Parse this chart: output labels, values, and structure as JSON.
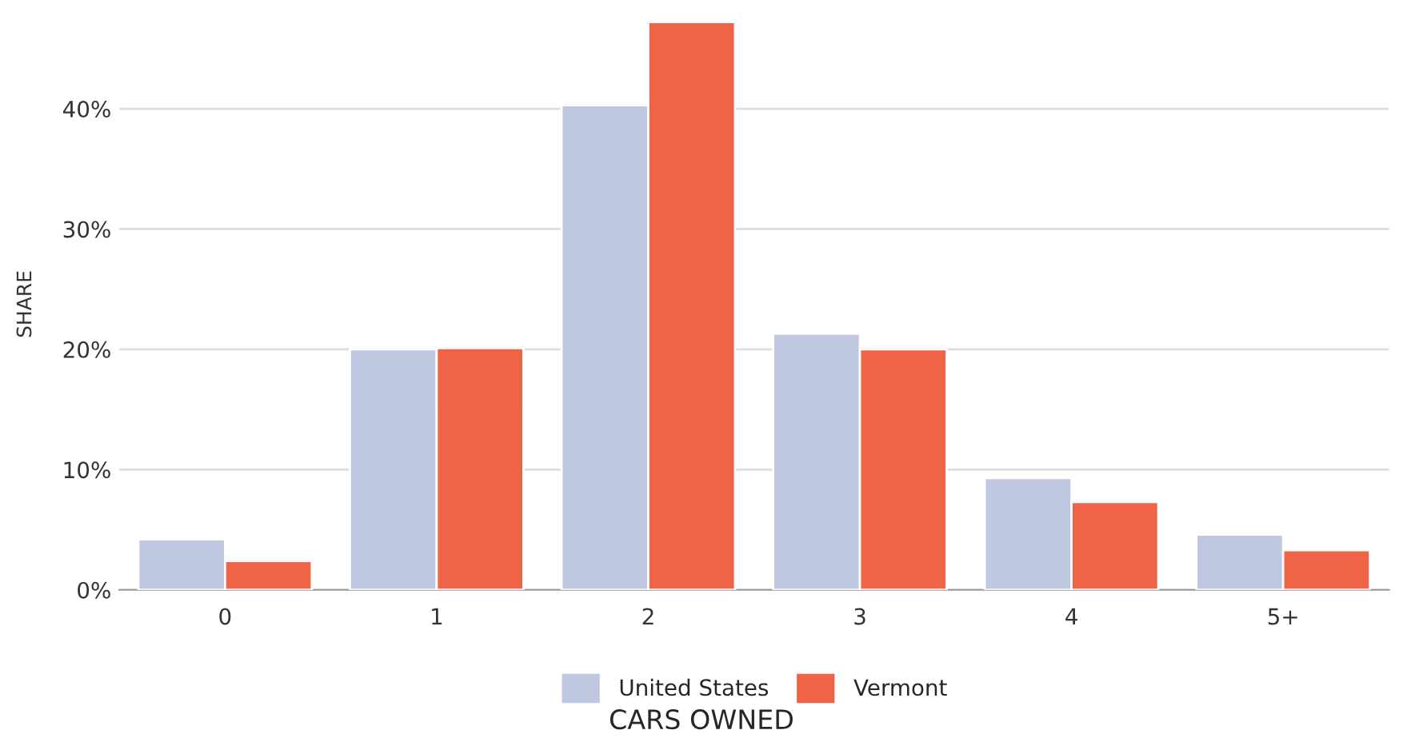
{
  "chart_data": {
    "type": "bar",
    "xlabel": "CARS OWNED",
    "ylabel": "SHARE",
    "categories": [
      "0",
      "1",
      "2",
      "3",
      "4",
      "5+"
    ],
    "series": [
      {
        "name": "United States",
        "color": "#c0c7e0",
        "values": [
          4.2,
          20.0,
          40.3,
          21.3,
          9.3,
          4.6
        ]
      },
      {
        "name": "Vermont",
        "color": "#ef6347",
        "values": [
          2.4,
          20.1,
          47.2,
          20.0,
          7.3,
          3.3
        ]
      }
    ],
    "ylim": [
      0,
      47.5
    ],
    "yticks": [
      {
        "value": 0,
        "label": "0%"
      },
      {
        "value": 10,
        "label": "10%"
      },
      {
        "value": 20,
        "label": "20%"
      },
      {
        "value": 30,
        "label": "30%"
      },
      {
        "value": 40,
        "label": "40%"
      }
    ],
    "grid": "y",
    "legend": "bottom"
  }
}
